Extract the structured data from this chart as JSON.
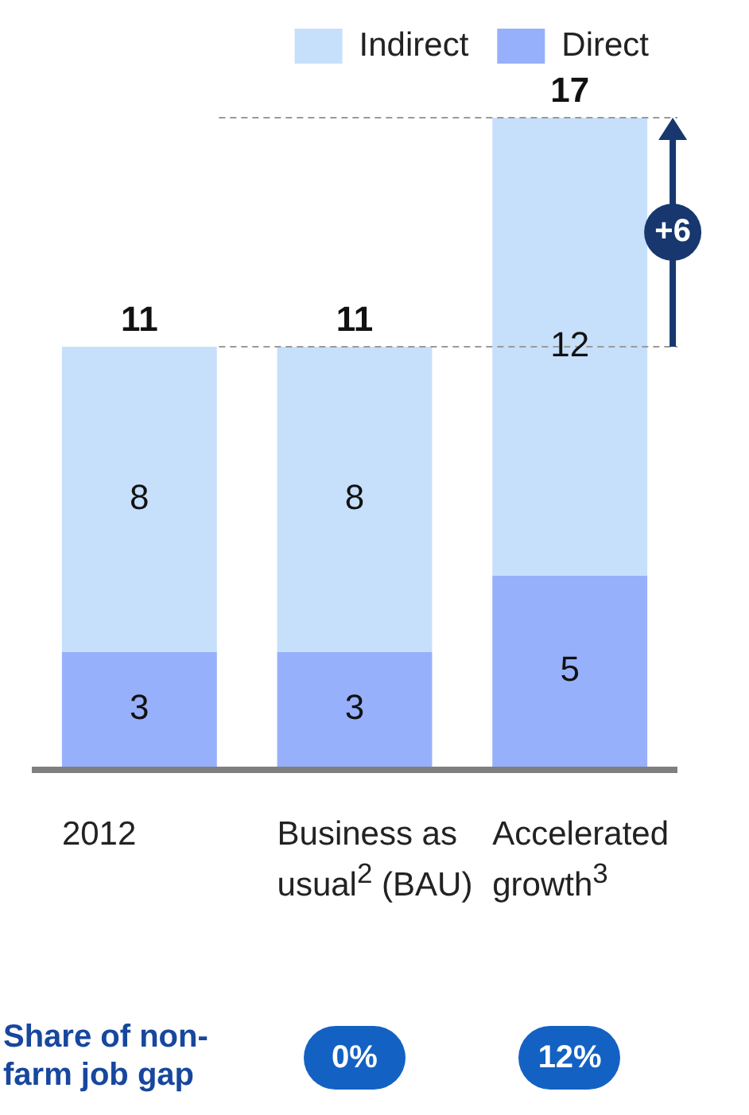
{
  "chart_data": {
    "type": "bar",
    "stacked": true,
    "categories": [
      "2012",
      "Business as usual$^{2}$ (BAU)",
      "Accelerated growth$^{3}$"
    ],
    "series": [
      {
        "name": "Direct",
        "color": "#97b0fb",
        "values": [
          3,
          3,
          5
        ]
      },
      {
        "name": "Indirect",
        "color": "#c6dffb",
        "values": [
          8,
          8,
          12
        ]
      }
    ],
    "data_labels": true,
    "totals": [
      "11",
      "11",
      "17"
    ],
    "legend": "top right",
    "grid": false,
    "ref_lines": [
      {
        "axis": "y",
        "value": 11,
        "line_style": "dashed",
        "color": "#9a9a9a"
      },
      {
        "axis": "y",
        "value": 17,
        "line_style": "dashed",
        "color": "#9a9a9a"
      }
    ],
    "annotations": [
      "+6",
      "Share of non-farm job gap",
      "0%",
      "12%"
    ]
  }
}
